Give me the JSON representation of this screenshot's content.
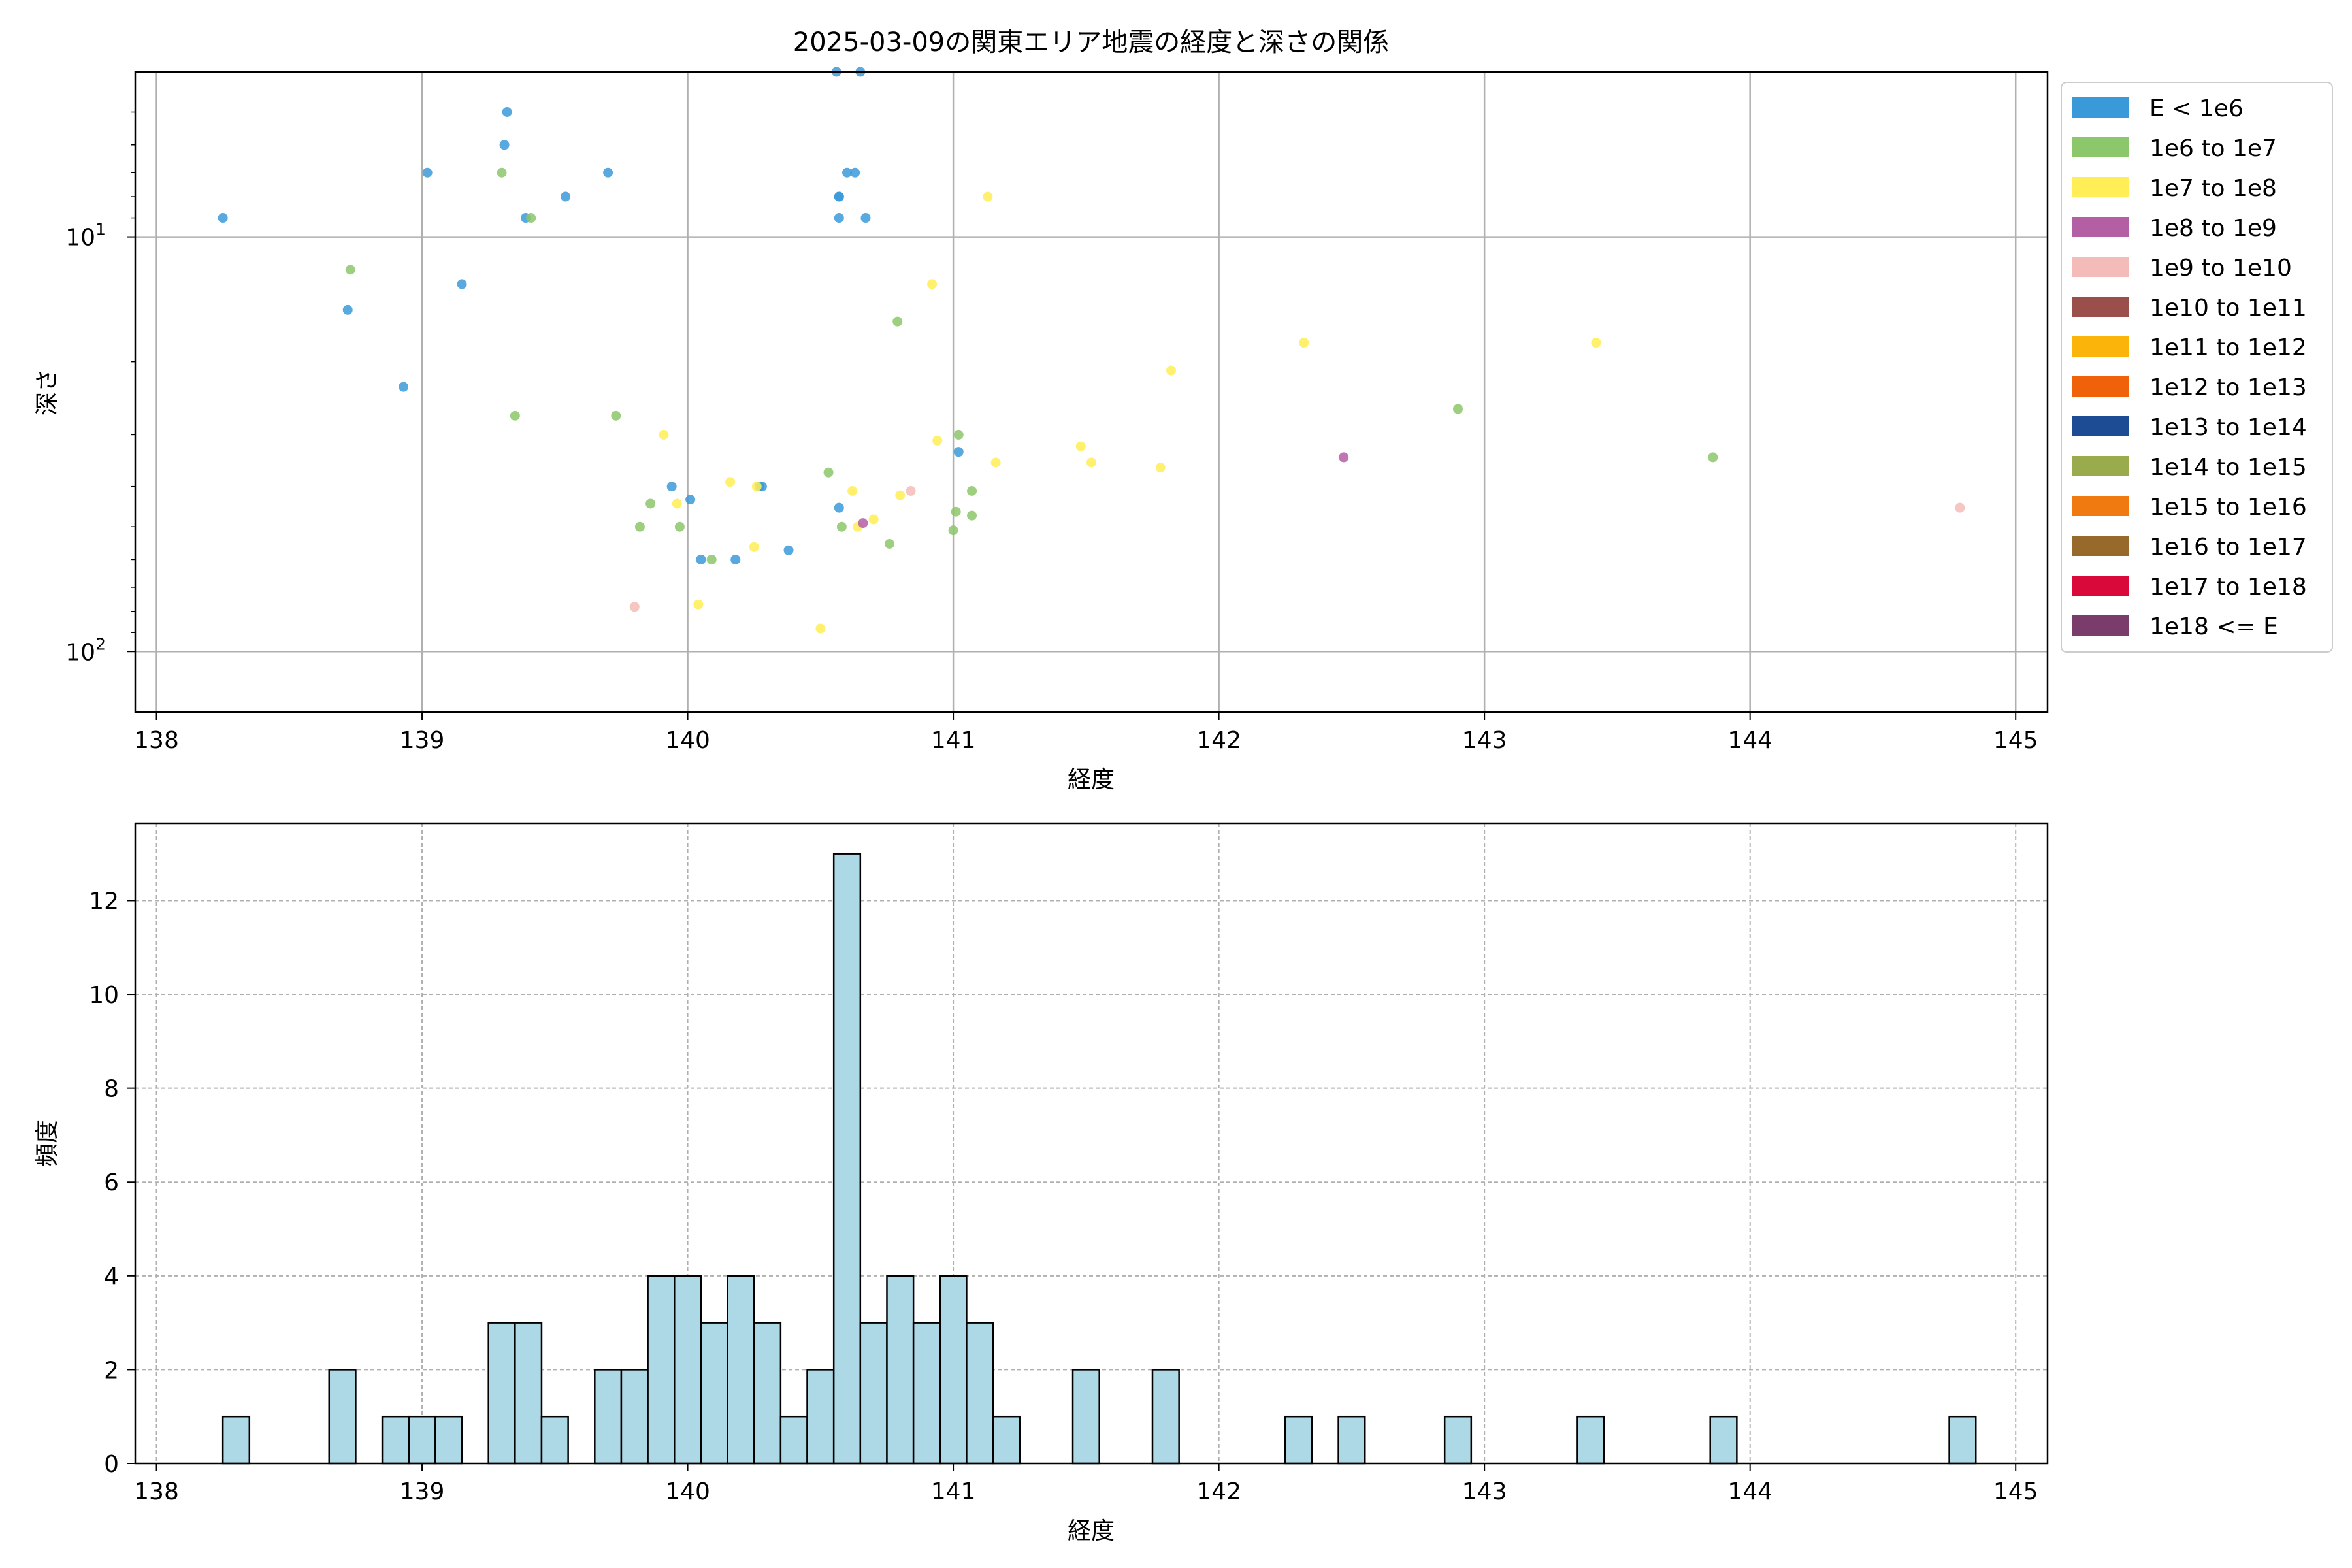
{
  "chart_data": [
    {
      "type": "scatter",
      "title": "2025-03-09の関東エリア地震の経度と深さの関係",
      "xlabel": "経度",
      "ylabel": "深さ",
      "xlim": [
        137.92,
        145.12
      ],
      "ylim": [
        140,
        4
      ],
      "y_scale": "log",
      "y_inverted": true,
      "grid": true,
      "x_ticks": [
        "138",
        "139",
        "140",
        "141",
        "142",
        "143",
        "144",
        "145"
      ],
      "y_ticks": [
        {
          "value": 10,
          "base": "10",
          "exp": "1"
        },
        {
          "value": 100,
          "base": "10",
          "exp": "2"
        }
      ],
      "legend_position": "outside-right",
      "legend": [
        {
          "label": "E < 1e6",
          "color": "#3a9ad9"
        },
        {
          "label": "1e6 to 1e7",
          "color": "#8dc76b"
        },
        {
          "label": "1e7 to 1e8",
          "color": "#ffee55"
        },
        {
          "label": "1e8 to 1e9",
          "color": "#b45ea3"
        },
        {
          "label": "1e9 to 1e10",
          "color": "#f4bcb8"
        },
        {
          "label": "1e10 to 1e11",
          "color": "#9a4f4a"
        },
        {
          "label": "1e11 to 1e12",
          "color": "#fbb40a"
        },
        {
          "label": "1e12 to 1e13",
          "color": "#f0620a"
        },
        {
          "label": "1e13 to 1e14",
          "color": "#1d4b94"
        },
        {
          "label": "1e14 to 1e15",
          "color": "#9aab4e"
        },
        {
          "label": "1e15 to 1e16",
          "color": "#f07a10"
        },
        {
          "label": "1e16 to 1e17",
          "color": "#976a2b"
        },
        {
          "label": "1e17 to 1e18",
          "color": "#d90a3a"
        },
        {
          "label": "1e18 <= E",
          "color": "#7a3c6a"
        }
      ],
      "series": [
        {
          "class": 0,
          "x": [
            138.25,
            139.32,
            139.31,
            139.02,
            139.39,
            139.54,
            139.7,
            139.15,
            138.72,
            138.93,
            140.56,
            140.65,
            140.6,
            140.63,
            140.57,
            140.57,
            140.57,
            140.67,
            139.94,
            140.01,
            140.27,
            140.28,
            140.05,
            140.18,
            140.38,
            140.57,
            141.02
          ],
          "y": [
            9,
            5,
            6,
            7,
            9,
            8,
            7,
            13,
            15,
            23,
            4,
            4,
            7,
            7,
            8,
            8,
            9,
            9,
            40,
            43,
            40,
            40,
            60,
            60,
            57,
            45,
            33
          ]
        },
        {
          "class": 1,
          "x": [
            138.73,
            139.3,
            139.41,
            139.35,
            139.73,
            139.82,
            139.86,
            139.97,
            140.09,
            140.53,
            140.58,
            140.76,
            140.79,
            141.0,
            141.01,
            141.02,
            141.07,
            141.07,
            142.9,
            143.86
          ],
          "y": [
            12,
            7,
            9,
            27,
            27,
            50,
            44,
            50,
            60,
            37,
            50,
            55,
            16,
            51,
            46,
            30,
            47,
            41,
            26,
            34
          ]
        },
        {
          "class": 2,
          "x": [
            139.91,
            139.96,
            140.04,
            140.16,
            140.25,
            140.26,
            140.5,
            140.62,
            140.64,
            140.7,
            140.8,
            140.92,
            140.94,
            141.13,
            141.16,
            141.48,
            141.52,
            141.78,
            141.82,
            142.32,
            143.42
          ],
          "y": [
            30,
            44,
            77,
            39,
            56,
            40,
            88,
            41,
            50,
            48,
            42,
            13,
            31,
            8,
            35,
            32,
            35,
            36,
            21,
            18,
            18
          ]
        },
        {
          "class": 3,
          "x": [
            140.66,
            142.47
          ],
          "y": [
            49,
            34
          ]
        },
        {
          "class": 4,
          "x": [
            139.8,
            140.84,
            144.79
          ],
          "y": [
            78,
            41,
            45
          ]
        }
      ]
    },
    {
      "type": "bar",
      "subtype": "histogram",
      "xlabel": "経度",
      "ylabel": "頻度",
      "xlim": [
        137.92,
        145.12
      ],
      "ylim": [
        0,
        13.65
      ],
      "grid": true,
      "bar_color": "#add8e6",
      "bin_width": 0.1,
      "x_ticks": [
        "138",
        "139",
        "140",
        "141",
        "142",
        "143",
        "144",
        "145"
      ],
      "y_ticks": [
        "0",
        "2",
        "4",
        "6",
        "8",
        "10",
        "12"
      ],
      "bins": [
        {
          "x0": 138.25,
          "count": 1
        },
        {
          "x0": 138.65,
          "count": 2
        },
        {
          "x0": 138.85,
          "count": 1
        },
        {
          "x0": 138.95,
          "count": 1
        },
        {
          "x0": 139.05,
          "count": 1
        },
        {
          "x0": 139.25,
          "count": 3
        },
        {
          "x0": 139.35,
          "count": 3
        },
        {
          "x0": 139.45,
          "count": 1
        },
        {
          "x0": 139.65,
          "count": 2
        },
        {
          "x0": 139.75,
          "count": 2
        },
        {
          "x0": 139.85,
          "count": 4
        },
        {
          "x0": 139.95,
          "count": 4
        },
        {
          "x0": 140.05,
          "count": 3
        },
        {
          "x0": 140.15,
          "count": 4
        },
        {
          "x0": 140.25,
          "count": 3
        },
        {
          "x0": 140.35,
          "count": 1
        },
        {
          "x0": 140.45,
          "count": 2
        },
        {
          "x0": 140.55,
          "count": 13
        },
        {
          "x0": 140.65,
          "count": 3
        },
        {
          "x0": 140.75,
          "count": 4
        },
        {
          "x0": 140.85,
          "count": 3
        },
        {
          "x0": 140.95,
          "count": 4
        },
        {
          "x0": 141.05,
          "count": 3
        },
        {
          "x0": 141.15,
          "count": 1
        },
        {
          "x0": 141.45,
          "count": 2
        },
        {
          "x0": 141.75,
          "count": 2
        },
        {
          "x0": 142.25,
          "count": 1
        },
        {
          "x0": 142.45,
          "count": 1
        },
        {
          "x0": 142.85,
          "count": 1
        },
        {
          "x0": 143.35,
          "count": 1
        },
        {
          "x0": 143.85,
          "count": 1
        },
        {
          "x0": 144.75,
          "count": 1
        }
      ]
    }
  ]
}
